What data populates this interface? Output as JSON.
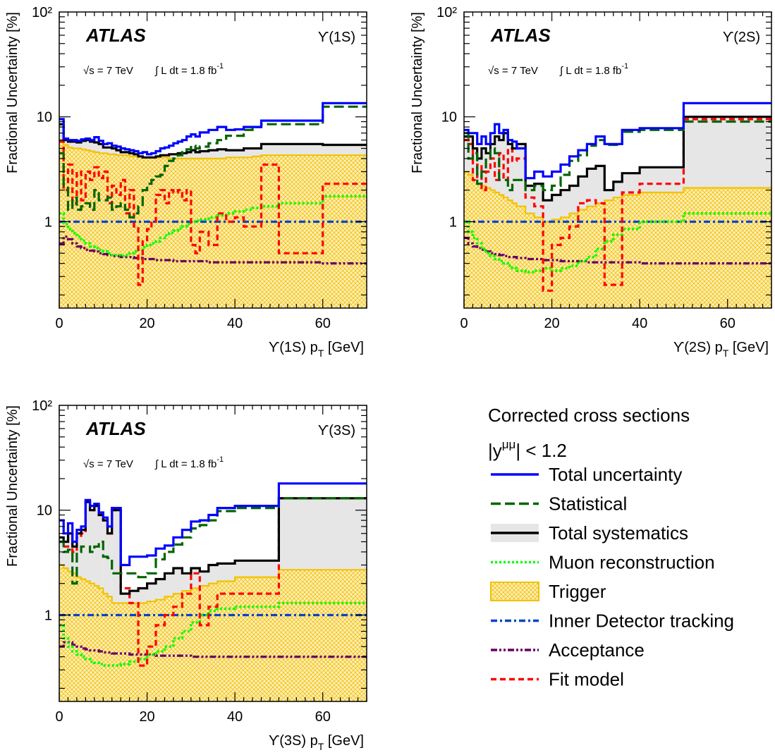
{
  "legend": {
    "title": "Corrected cross sections",
    "cut": "|y",
    "cut_sup": "μμ",
    "cut_tail": "| < 1.2",
    "entries": [
      {
        "key": "total",
        "label": "Total uncertainty",
        "color": "#0000ff",
        "style": "solid"
      },
      {
        "key": "stat",
        "label": "Statistical",
        "color": "#006400",
        "style": "longdash"
      },
      {
        "key": "syst",
        "label": "Total systematics",
        "color": "#000000",
        "style": "solid-box"
      },
      {
        "key": "muon",
        "label": "Muon reconstruction",
        "color": "#00ff00",
        "style": "dotted"
      },
      {
        "key": "trig",
        "label": "Trigger",
        "color": "#f2c200",
        "style": "hatch"
      },
      {
        "key": "idt",
        "label": "Inner Detector tracking",
        "color": "#0044cc",
        "style": "dashdot"
      },
      {
        "key": "acc",
        "label": "Acceptance",
        "color": "#660066",
        "style": "dashdotdot"
      },
      {
        "key": "fit",
        "label": "Fit model",
        "color": "#ff0000",
        "style": "dashed"
      }
    ]
  },
  "chart_data": [
    {
      "id": "1S",
      "type": "step-line",
      "experiment": "ATLAS",
      "state": "ϒ(1S)",
      "energy": "√s = 7 TeV",
      "lumi": "∫ L dt = 1.8 fb",
      "lumi_sup": "-1",
      "xlabel": "ϒ(1S) p",
      "xlabel_sub": "T",
      "xlabel_unit": " [GeV]",
      "ylabel": "Fractional Uncertainty [%]",
      "xlim": [
        0,
        70
      ],
      "ylim": [
        0.15,
        100
      ],
      "yscale": "log",
      "xticks": [
        "0",
        "20",
        "40",
        "60"
      ],
      "yticks": [
        "1",
        "10",
        "10²"
      ],
      "edges": [
        0,
        1,
        2,
        3,
        4,
        5,
        6,
        7,
        8,
        9,
        10,
        11,
        12,
        13,
        14,
        15,
        16,
        17,
        18,
        19,
        20,
        21,
        22,
        23,
        24,
        25,
        26,
        27,
        28,
        29,
        30,
        31,
        32,
        34,
        36,
        38,
        40,
        42,
        44,
        46,
        50,
        60,
        70
      ],
      "series": {
        "total": [
          9.5,
          6.2,
          6.0,
          6.0,
          5.9,
          6.1,
          6.2,
          6.0,
          6.4,
          5.9,
          5.5,
          5.6,
          5.3,
          5.2,
          5.0,
          4.9,
          4.8,
          4.7,
          4.5,
          4.6,
          4.4,
          4.5,
          4.7,
          5.0,
          5.1,
          5.3,
          5.6,
          5.8,
          6.0,
          6.5,
          6.8,
          6.5,
          7.1,
          7.5,
          8.0,
          7.5,
          7.6,
          8.0,
          8.0,
          9.2,
          9.2,
          13.5
        ],
        "stat": [
          4.5,
          2.2,
          1.3,
          1.7,
          1.3,
          1.4,
          1.5,
          1.3,
          2.0,
          1.6,
          1.6,
          1.7,
          1.3,
          1.4,
          1.5,
          1.3,
          1.1,
          1.2,
          1.4,
          2.0,
          2.3,
          2.5,
          2.7,
          2.8,
          3.4,
          3.8,
          4.0,
          4.3,
          4.6,
          4.9,
          5.3,
          5.0,
          5.2,
          5.6,
          6.0,
          6.6,
          6.6,
          7.5,
          8.0,
          8.5,
          8.5,
          12.5
        ],
        "syst": [
          8.5,
          6.0,
          5.8,
          5.8,
          5.7,
          5.9,
          6.0,
          5.8,
          5.7,
          5.5,
          5.1,
          5.1,
          5.0,
          4.8,
          4.6,
          4.6,
          4.5,
          4.4,
          4.2,
          4.1,
          4.1,
          4.1,
          4.2,
          4.3,
          4.3,
          4.4,
          4.4,
          4.5,
          4.5,
          4.6,
          4.8,
          4.6,
          4.7,
          4.8,
          4.9,
          4.8,
          4.8,
          5.0,
          5.0,
          5.5,
          5.5,
          5.4
        ],
        "trig": [
          6.0,
          5.4,
          5.1,
          5.0,
          5.0,
          4.9,
          4.8,
          4.7,
          4.6,
          4.5,
          4.5,
          4.4,
          4.4,
          4.3,
          4.3,
          4.3,
          4.2,
          4.2,
          4.2,
          4.1,
          4.1,
          4.1,
          4.1,
          4.1,
          4.1,
          4.0,
          4.0,
          4.0,
          4.0,
          4.0,
          4.0,
          4.0,
          4.0,
          4.0,
          4.0,
          4.1,
          4.1,
          4.1,
          4.2,
          4.3,
          4.3,
          4.3
        ],
        "muon": [
          1.2,
          0.95,
          0.85,
          0.78,
          0.72,
          0.66,
          0.62,
          0.58,
          0.56,
          0.54,
          0.52,
          0.5,
          0.48,
          0.48,
          0.47,
          0.48,
          0.5,
          0.52,
          0.54,
          0.57,
          0.6,
          0.62,
          0.65,
          0.7,
          0.74,
          0.78,
          0.82,
          0.86,
          0.9,
          0.95,
          1.0,
          1.02,
          1.05,
          1.1,
          1.15,
          1.2,
          1.25,
          1.3,
          1.35,
          1.4,
          1.5,
          1.75
        ],
        "idt": [
          1.0,
          1.0,
          1.0,
          1.0,
          1.0,
          1.0,
          1.0,
          1.0,
          1.0,
          1.0,
          1.0,
          1.0,
          1.0,
          1.0,
          1.0,
          1.0,
          1.0,
          1.0,
          1.0,
          1.0,
          1.0,
          1.0,
          1.0,
          1.0,
          1.0,
          1.0,
          1.0,
          1.0,
          1.0,
          1.0,
          1.0,
          1.0,
          1.0,
          1.0,
          1.0,
          1.0,
          1.0,
          1.0,
          1.0,
          1.0,
          1.0,
          1.0
        ],
        "acc": [
          0.62,
          0.72,
          0.68,
          0.62,
          0.58,
          0.56,
          0.54,
          0.53,
          0.52,
          0.5,
          0.49,
          0.48,
          0.47,
          0.47,
          0.46,
          0.46,
          0.46,
          0.45,
          0.45,
          0.44,
          0.44,
          0.44,
          0.43,
          0.43,
          0.43,
          0.43,
          0.42,
          0.42,
          0.42,
          0.42,
          0.42,
          0.42,
          0.42,
          0.41,
          0.41,
          0.41,
          0.41,
          0.41,
          0.41,
          0.41,
          0.41,
          0.4
        ],
        "fit": [
          5.8,
          2.0,
          3.5,
          1.5,
          3.0,
          1.6,
          3.0,
          2.5,
          3.3,
          2.6,
          3.0,
          1.5,
          2.2,
          1.8,
          2.5,
          1.2,
          2.0,
          0.9,
          0.25,
          0.65,
          0.85,
          1.0,
          1.8,
          2.0,
          1.5,
          2.0,
          1.9,
          2.0,
          1.6,
          2.0,
          0.6,
          0.5,
          0.8,
          0.6,
          1.2,
          1.0,
          1.1,
          0.9,
          0.9,
          3.5,
          0.5,
          2.3
        ]
      }
    },
    {
      "id": "2S",
      "type": "step-line",
      "experiment": "ATLAS",
      "state": "ϒ(2S)",
      "energy": "√s = 7 TeV",
      "lumi": "∫ L dt = 1.8 fb",
      "lumi_sup": "-1",
      "xlabel": "ϒ(2S) p",
      "xlabel_sub": "T",
      "xlabel_unit": " [GeV]",
      "ylabel": "Fractional Uncertainty [%]",
      "xlim": [
        0,
        70
      ],
      "ylim": [
        0.15,
        100
      ],
      "yscale": "log",
      "xticks": [
        "0",
        "20",
        "40",
        "60"
      ],
      "yticks": [
        "1",
        "10",
        "10²"
      ],
      "edges": [
        0,
        1,
        2,
        3,
        4,
        5,
        6,
        7,
        8,
        9,
        10,
        11,
        12,
        14,
        16,
        18,
        20,
        22,
        24,
        26,
        28,
        30,
        32,
        34,
        36,
        40,
        50,
        70
      ],
      "series": {
        "total": [
          7.5,
          7.0,
          7.0,
          5.5,
          6.5,
          5.5,
          7.0,
          8.5,
          7.0,
          7.5,
          6.0,
          5.8,
          5.0,
          2.6,
          3.0,
          2.7,
          3.0,
          3.5,
          4.2,
          4.8,
          5.5,
          6.5,
          5.5,
          5.5,
          7.5,
          7.8,
          13.5
        ],
        "stat": [
          7.0,
          4.0,
          4.5,
          2.3,
          3.0,
          4.0,
          5.0,
          4.5,
          2.5,
          2.5,
          2.0,
          2.5,
          2.5,
          2.0,
          2.2,
          2.0,
          2.2,
          2.8,
          3.8,
          4.3,
          5.3,
          6.0,
          5.4,
          5.4,
          7.2,
          7.5,
          9.0
        ],
        "syst": [
          6.5,
          6.5,
          5.0,
          4.0,
          5.0,
          4.5,
          5.5,
          6.5,
          6.0,
          7.0,
          5.5,
          5.0,
          5.5,
          2.2,
          2.3,
          1.6,
          1.8,
          2.0,
          2.2,
          2.7,
          3.2,
          3.4,
          2.0,
          2.4,
          2.9,
          3.3,
          10.0
        ],
        "trig": [
          3.0,
          2.8,
          2.5,
          2.3,
          2.2,
          2.1,
          2.0,
          1.9,
          1.8,
          1.7,
          1.6,
          1.5,
          1.4,
          1.2,
          1.1,
          1.0,
          1.05,
          1.1,
          1.2,
          1.3,
          1.4,
          1.5,
          1.6,
          1.7,
          1.8,
          1.9,
          2.1
        ],
        "muon": [
          1.0,
          0.8,
          0.7,
          0.62,
          0.55,
          0.5,
          0.47,
          0.44,
          0.42,
          0.4,
          0.38,
          0.36,
          0.34,
          0.33,
          0.34,
          0.36,
          0.34,
          0.36,
          0.38,
          0.42,
          0.46,
          0.55,
          0.65,
          0.75,
          0.85,
          1.0,
          1.2
        ],
        "idt": [
          1.0,
          1.0,
          1.0,
          1.0,
          1.0,
          1.0,
          1.0,
          1.0,
          1.0,
          1.0,
          1.0,
          1.0,
          1.0,
          1.0,
          1.0,
          1.0,
          1.0,
          1.0,
          1.0,
          1.0,
          1.0,
          1.0,
          1.0,
          1.0,
          1.0,
          1.0,
          1.0
        ],
        "acc": [
          0.7,
          0.62,
          0.58,
          0.56,
          0.54,
          0.52,
          0.5,
          0.49,
          0.48,
          0.47,
          0.46,
          0.46,
          0.45,
          0.44,
          0.44,
          0.43,
          0.43,
          0.42,
          0.42,
          0.42,
          0.41,
          0.41,
          0.41,
          0.41,
          0.41,
          0.4,
          0.4
        ],
        "fit": [
          6.0,
          5.5,
          2.5,
          3.5,
          2.0,
          3.0,
          4.0,
          2.5,
          4.5,
          2.5,
          5.0,
          3.8,
          4.0,
          1.7,
          1.4,
          0.22,
          0.6,
          0.7,
          0.9,
          1.5,
          1.6,
          1.5,
          0.25,
          0.25,
          1.9,
          2.3,
          9.5
        ]
      }
    },
    {
      "id": "3S",
      "type": "step-line",
      "experiment": "ATLAS",
      "state": "ϒ(3S)",
      "energy": "√s = 7 TeV",
      "lumi": "∫ L dt = 1.8 fb",
      "lumi_sup": "-1",
      "xlabel": "ϒ(3S) p",
      "xlabel_sub": "T",
      "xlabel_unit": " [GeV]",
      "ylabel": "Fractional Uncertainty [%]",
      "xlim": [
        0,
        70
      ],
      "ylim": [
        0.15,
        100
      ],
      "yscale": "log",
      "xticks": [
        "0",
        "20",
        "40",
        "60"
      ],
      "yticks": [
        "1",
        "10",
        "10²"
      ],
      "edges": [
        0,
        1,
        2,
        3,
        4,
        5,
        6,
        7,
        8,
        9,
        10,
        11,
        12,
        14,
        16,
        18,
        20,
        22,
        24,
        26,
        28,
        30,
        32,
        34,
        36,
        40,
        50,
        70
      ],
      "series": {
        "total": [
          8.0,
          6.0,
          7.5,
          5.0,
          6.5,
          7.0,
          12.5,
          11.0,
          11.5,
          9.5,
          8.5,
          7.0,
          10.5,
          3.0,
          3.6,
          3.6,
          3.7,
          4.3,
          4.6,
          5.5,
          6.5,
          7.8,
          8.0,
          9.0,
          10.5,
          11.0,
          18.0
        ],
        "stat": [
          5.0,
          4.0,
          4.2,
          2.0,
          4.0,
          4.5,
          4.5,
          4.0,
          4.5,
          5.0,
          3.6,
          3.5,
          2.5,
          2.5,
          2.5,
          2.3,
          2.5,
          3.4,
          4.0,
          4.7,
          5.5,
          6.7,
          7.2,
          8.0,
          9.8,
          10.5,
          13.0
        ],
        "syst": [
          5.5,
          5.0,
          6.0,
          4.5,
          6.0,
          6.5,
          12.0,
          10.0,
          11.0,
          9.0,
          8.0,
          6.0,
          10.0,
          1.6,
          1.7,
          1.8,
          2.0,
          2.2,
          2.5,
          2.8,
          2.5,
          2.8,
          2.6,
          3.0,
          3.1,
          3.3,
          13.0
        ],
        "trig": [
          3.0,
          2.8,
          2.6,
          2.5,
          2.3,
          2.2,
          2.1,
          2.0,
          1.9,
          1.8,
          1.6,
          1.5,
          1.3,
          1.3,
          1.3,
          1.3,
          1.35,
          1.4,
          1.5,
          1.6,
          1.7,
          1.8,
          1.9,
          2.0,
          2.1,
          2.3,
          2.7
        ],
        "muon": [
          0.8,
          0.6,
          0.5,
          0.45,
          0.42,
          0.4,
          0.38,
          0.36,
          0.35,
          0.34,
          0.33,
          0.33,
          0.33,
          0.34,
          0.36,
          0.38,
          0.42,
          0.45,
          0.5,
          0.6,
          0.7,
          0.85,
          1.0,
          1.1,
          1.15,
          1.2,
          1.3
        ],
        "idt": [
          1.0,
          1.0,
          1.0,
          1.0,
          1.0,
          1.0,
          1.0,
          1.0,
          1.0,
          1.0,
          1.0,
          1.0,
          1.0,
          1.0,
          1.0,
          1.0,
          1.0,
          1.0,
          1.0,
          1.0,
          1.0,
          1.0,
          1.0,
          1.0,
          1.0,
          1.0,
          1.0
        ],
        "acc": [
          0.5,
          0.55,
          0.55,
          0.52,
          0.5,
          0.48,
          0.47,
          0.46,
          0.46,
          0.45,
          0.44,
          0.44,
          0.43,
          0.43,
          0.42,
          0.42,
          0.42,
          0.41,
          0.41,
          0.41,
          0.41,
          0.4,
          0.4,
          0.4,
          0.4,
          0.4,
          0.4
        ],
        "fit": [
          5.0,
          4.5,
          6.0,
          4.0,
          5.5,
          6.0,
          12.0,
          10.0,
          11.0,
          9.0,
          8.0,
          6.0,
          10.0,
          1.8,
          1.3,
          0.33,
          0.5,
          0.8,
          1.0,
          1.2,
          1.6,
          2.5,
          0.8,
          1.2,
          1.6,
          1.6,
          13.0
        ]
      }
    }
  ]
}
